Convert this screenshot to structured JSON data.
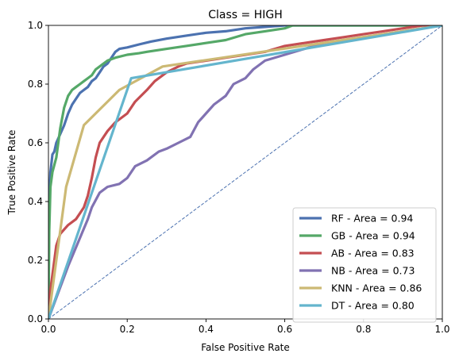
{
  "chart_data": {
    "type": "line",
    "title": "Class = HIGH",
    "xlabel": "False Positive Rate",
    "ylabel": "True Positive Rate",
    "xlim": [
      0,
      1
    ],
    "ylim": [
      0,
      1
    ],
    "xticks": [
      "0.0",
      "0.2",
      "0.4",
      "0.6",
      "0.8",
      "1.0"
    ],
    "yticks": [
      "0.0",
      "0.2",
      "0.4",
      "0.6",
      "0.8",
      "1.0"
    ],
    "grid": false,
    "legend_position": "lower right",
    "diagonal": {
      "x": [
        0,
        1
      ],
      "y": [
        0,
        1
      ],
      "color": "#4c72b0",
      "style": "dashed"
    },
    "series": [
      {
        "name": "RF - Area = 0.94",
        "color": "#4c72b0",
        "x": [
          0,
          0.002,
          0.005,
          0.01,
          0.015,
          0.02,
          0.03,
          0.04,
          0.05,
          0.06,
          0.07,
          0.08,
          0.09,
          0.1,
          0.11,
          0.12,
          0.13,
          0.14,
          0.15,
          0.16,
          0.17,
          0.18,
          0.2,
          0.23,
          0.26,
          0.3,
          0.35,
          0.4,
          0.45,
          0.5,
          0.55,
          0.6,
          0.7,
          0.8,
          1.0
        ],
        "y": [
          0,
          0.4,
          0.5,
          0.56,
          0.57,
          0.6,
          0.63,
          0.66,
          0.7,
          0.73,
          0.75,
          0.77,
          0.78,
          0.79,
          0.81,
          0.82,
          0.84,
          0.86,
          0.87,
          0.89,
          0.91,
          0.92,
          0.925,
          0.935,
          0.945,
          0.955,
          0.965,
          0.975,
          0.98,
          0.99,
          0.995,
          1.0,
          1.0,
          1.0,
          1.0
        ]
      },
      {
        "name": "GB - Area = 0.94",
        "color": "#55a868",
        "x": [
          0,
          0.002,
          0.005,
          0.01,
          0.02,
          0.03,
          0.04,
          0.05,
          0.06,
          0.07,
          0.08,
          0.09,
          0.1,
          0.11,
          0.12,
          0.13,
          0.14,
          0.15,
          0.17,
          0.2,
          0.23,
          0.25,
          0.3,
          0.35,
          0.4,
          0.45,
          0.5,
          0.55,
          0.6,
          0.62,
          0.7,
          0.8,
          1.0
        ],
        "y": [
          0,
          0.3,
          0.45,
          0.5,
          0.55,
          0.65,
          0.72,
          0.76,
          0.78,
          0.79,
          0.8,
          0.81,
          0.82,
          0.83,
          0.85,
          0.86,
          0.87,
          0.88,
          0.89,
          0.9,
          0.905,
          0.91,
          0.92,
          0.93,
          0.94,
          0.95,
          0.97,
          0.98,
          0.99,
          1.0,
          1.0,
          1.0,
          1.0
        ]
      },
      {
        "name": "AB - Area = 0.83",
        "color": "#c44e52",
        "x": [
          0,
          0.005,
          0.01,
          0.02,
          0.03,
          0.05,
          0.07,
          0.08,
          0.09,
          0.1,
          0.11,
          0.12,
          0.13,
          0.15,
          0.17,
          0.2,
          0.22,
          0.25,
          0.27,
          0.3,
          0.33,
          0.35,
          0.4,
          0.45,
          0.5,
          0.55,
          0.6,
          0.65,
          0.7,
          0.75,
          0.8,
          0.85,
          0.9,
          0.95,
          1.0
        ],
        "y": [
          0,
          0.1,
          0.15,
          0.25,
          0.29,
          0.32,
          0.34,
          0.36,
          0.38,
          0.42,
          0.48,
          0.55,
          0.6,
          0.64,
          0.67,
          0.7,
          0.74,
          0.78,
          0.81,
          0.84,
          0.86,
          0.87,
          0.88,
          0.89,
          0.9,
          0.91,
          0.93,
          0.94,
          0.95,
          0.96,
          0.97,
          0.98,
          0.99,
          1.0,
          1.0
        ]
      },
      {
        "name": "NB - Area = 0.73",
        "color": "#8172b2",
        "x": [
          0,
          0.05,
          0.1,
          0.11,
          0.13,
          0.15,
          0.18,
          0.2,
          0.22,
          0.25,
          0.28,
          0.3,
          0.33,
          0.36,
          0.38,
          0.4,
          0.42,
          0.45,
          0.47,
          0.5,
          0.52,
          0.55,
          0.6,
          0.65,
          0.7,
          0.75,
          0.8,
          0.85,
          0.9,
          0.95,
          1.0
        ],
        "y": [
          0,
          0.18,
          0.34,
          0.38,
          0.43,
          0.45,
          0.46,
          0.48,
          0.52,
          0.54,
          0.57,
          0.58,
          0.6,
          0.62,
          0.67,
          0.7,
          0.73,
          0.76,
          0.8,
          0.82,
          0.85,
          0.88,
          0.9,
          0.92,
          0.94,
          0.95,
          0.96,
          0.97,
          0.98,
          0.99,
          1.0
        ]
      },
      {
        "name": "KNN - Area = 0.86",
        "color": "#ccb974",
        "x": [
          0,
          0.045,
          0.09,
          0.18,
          0.29,
          1.0
        ],
        "y": [
          0,
          0.45,
          0.66,
          0.78,
          0.86,
          1.0
        ]
      },
      {
        "name": "DT - Area = 0.80",
        "color": "#64b5cd",
        "x": [
          0,
          0.21,
          1.0
        ],
        "y": [
          0,
          0.82,
          1.0
        ]
      }
    ]
  }
}
